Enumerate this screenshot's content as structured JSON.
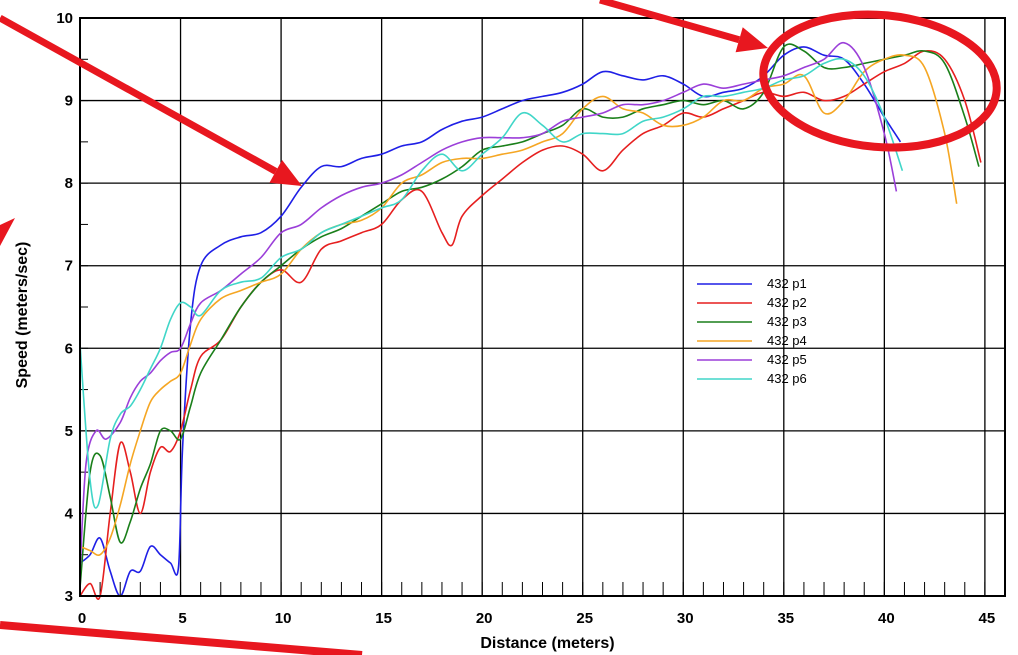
{
  "chart_data": {
    "type": "line",
    "title": "",
    "xlabel": "Distance (meters)",
    "ylabel": "Speed (meters/sec)",
    "xlim": [
      0,
      46
    ],
    "ylim": [
      3,
      10
    ],
    "x_ticks": [
      0,
      5,
      10,
      15,
      20,
      25,
      30,
      35,
      40,
      45
    ],
    "y_ticks": [
      3,
      4,
      5,
      6,
      7,
      8,
      9,
      10
    ],
    "grid": true,
    "legend_position": "center-right",
    "series": [
      {
        "name": "432 p1",
        "color": "#1f1fe6",
        "points": [
          [
            0,
            3.4
          ],
          [
            0.5,
            3.5
          ],
          [
            1,
            3.7
          ],
          [
            1.5,
            3.3
          ],
          [
            2,
            3.0
          ],
          [
            2.5,
            3.3
          ],
          [
            3,
            3.3
          ],
          [
            3.5,
            3.6
          ],
          [
            4,
            3.5
          ],
          [
            4.5,
            3.4
          ],
          [
            4.9,
            3.35
          ],
          [
            5.1,
            4.8
          ],
          [
            5.5,
            6.3
          ],
          [
            6,
            7.0
          ],
          [
            7,
            7.25
          ],
          [
            8,
            7.35
          ],
          [
            9,
            7.4
          ],
          [
            10,
            7.6
          ],
          [
            11,
            7.95
          ],
          [
            12,
            8.2
          ],
          [
            13,
            8.2
          ],
          [
            14,
            8.3
          ],
          [
            15,
            8.35
          ],
          [
            16,
            8.45
          ],
          [
            17,
            8.5
          ],
          [
            18,
            8.65
          ],
          [
            19,
            8.75
          ],
          [
            20,
            8.8
          ],
          [
            21,
            8.9
          ],
          [
            22,
            9.0
          ],
          [
            23,
            9.05
          ],
          [
            24,
            9.1
          ],
          [
            25,
            9.2
          ],
          [
            26,
            9.35
          ],
          [
            27,
            9.3
          ],
          [
            28,
            9.25
          ],
          [
            29,
            9.3
          ],
          [
            30,
            9.2
          ],
          [
            31,
            9.05
          ],
          [
            32,
            9.1
          ],
          [
            33,
            9.15
          ],
          [
            34,
            9.3
          ],
          [
            35,
            9.55
          ],
          [
            36,
            9.65
          ],
          [
            37,
            9.55
          ],
          [
            38,
            9.5
          ],
          [
            39,
            9.2
          ],
          [
            40,
            8.8
          ],
          [
            40.8,
            8.5
          ]
        ]
      },
      {
        "name": "432 p2",
        "color": "#e61f1f",
        "points": [
          [
            0,
            3.0
          ],
          [
            0.5,
            3.15
          ],
          [
            1,
            3.0
          ],
          [
            1.5,
            4.0
          ],
          [
            2,
            4.85
          ],
          [
            2.5,
            4.5
          ],
          [
            3,
            4.0
          ],
          [
            3.5,
            4.5
          ],
          [
            4,
            4.8
          ],
          [
            4.5,
            4.75
          ],
          [
            5,
            5.0
          ],
          [
            5.5,
            5.5
          ],
          [
            6,
            5.9
          ],
          [
            7,
            6.1
          ],
          [
            8,
            6.5
          ],
          [
            9,
            6.8
          ],
          [
            10,
            6.95
          ],
          [
            11,
            6.8
          ],
          [
            12,
            7.2
          ],
          [
            13,
            7.3
          ],
          [
            14,
            7.4
          ],
          [
            15,
            7.5
          ],
          [
            16,
            7.8
          ],
          [
            17,
            7.9
          ],
          [
            18,
            7.4
          ],
          [
            18.5,
            7.25
          ],
          [
            19,
            7.6
          ],
          [
            20,
            7.85
          ],
          [
            21,
            8.05
          ],
          [
            22,
            8.25
          ],
          [
            23,
            8.4
          ],
          [
            24,
            8.45
          ],
          [
            25,
            8.35
          ],
          [
            26,
            8.15
          ],
          [
            27,
            8.4
          ],
          [
            28,
            8.6
          ],
          [
            29,
            8.7
          ],
          [
            30,
            8.85
          ],
          [
            31,
            8.8
          ],
          [
            32,
            8.9
          ],
          [
            33,
            9.0
          ],
          [
            34,
            9.1
          ],
          [
            35,
            9.05
          ],
          [
            36,
            9.1
          ],
          [
            37,
            9.0
          ],
          [
            38,
            9.05
          ],
          [
            39,
            9.2
          ],
          [
            40,
            9.35
          ],
          [
            41,
            9.45
          ],
          [
            42,
            9.6
          ],
          [
            43,
            9.5
          ],
          [
            44,
            9.0
          ],
          [
            44.8,
            8.25
          ]
        ]
      },
      {
        "name": "432 p3",
        "color": "#1a7f1a",
        "points": [
          [
            0,
            3.1
          ],
          [
            0.5,
            4.5
          ],
          [
            1,
            4.7
          ],
          [
            1.5,
            4.2
          ],
          [
            2,
            3.65
          ],
          [
            2.5,
            3.9
          ],
          [
            3,
            4.3
          ],
          [
            3.5,
            4.6
          ],
          [
            4,
            5.0
          ],
          [
            4.5,
            5.0
          ],
          [
            5,
            4.9
          ],
          [
            5.5,
            5.3
          ],
          [
            6,
            5.7
          ],
          [
            7,
            6.1
          ],
          [
            8,
            6.5
          ],
          [
            9,
            6.8
          ],
          [
            10,
            7.0
          ],
          [
            11,
            7.2
          ],
          [
            12,
            7.35
          ],
          [
            13,
            7.45
          ],
          [
            14,
            7.6
          ],
          [
            15,
            7.75
          ],
          [
            16,
            7.9
          ],
          [
            17,
            7.95
          ],
          [
            18,
            8.05
          ],
          [
            19,
            8.2
          ],
          [
            20,
            8.4
          ],
          [
            21,
            8.45
          ],
          [
            22,
            8.5
          ],
          [
            23,
            8.6
          ],
          [
            24,
            8.7
          ],
          [
            25,
            8.9
          ],
          [
            26,
            8.8
          ],
          [
            27,
            8.8
          ],
          [
            28,
            8.9
          ],
          [
            29,
            8.95
          ],
          [
            30,
            9.0
          ],
          [
            31,
            8.95
          ],
          [
            32,
            9.0
          ],
          [
            33,
            8.9
          ],
          [
            34,
            9.1
          ],
          [
            35,
            9.65
          ],
          [
            36,
            9.6
          ],
          [
            37,
            9.4
          ],
          [
            38,
            9.4
          ],
          [
            39,
            9.45
          ],
          [
            40,
            9.5
          ],
          [
            41,
            9.55
          ],
          [
            42,
            9.6
          ],
          [
            43,
            9.45
          ],
          [
            44,
            8.8
          ],
          [
            44.7,
            8.2
          ]
        ]
      },
      {
        "name": "432 p4",
        "color": "#f5a623",
        "points": [
          [
            0,
            3.6
          ],
          [
            0.5,
            3.55
          ],
          [
            1,
            3.5
          ],
          [
            1.5,
            3.7
          ],
          [
            2,
            4.1
          ],
          [
            2.5,
            4.6
          ],
          [
            3,
            5.0
          ],
          [
            3.5,
            5.35
          ],
          [
            4,
            5.5
          ],
          [
            4.5,
            5.6
          ],
          [
            5,
            5.7
          ],
          [
            5.5,
            6.05
          ],
          [
            6,
            6.35
          ],
          [
            7,
            6.6
          ],
          [
            8,
            6.7
          ],
          [
            9,
            6.8
          ],
          [
            10,
            6.9
          ],
          [
            11,
            7.2
          ],
          [
            12,
            7.4
          ],
          [
            13,
            7.5
          ],
          [
            14,
            7.55
          ],
          [
            15,
            7.7
          ],
          [
            16,
            8.0
          ],
          [
            17,
            8.1
          ],
          [
            18,
            8.25
          ],
          [
            19,
            8.3
          ],
          [
            20,
            8.3
          ],
          [
            21,
            8.35
          ],
          [
            22,
            8.4
          ],
          [
            23,
            8.5
          ],
          [
            24,
            8.6
          ],
          [
            25,
            8.9
          ],
          [
            26,
            9.05
          ],
          [
            27,
            8.9
          ],
          [
            28,
            8.85
          ],
          [
            29,
            8.7
          ],
          [
            30,
            8.7
          ],
          [
            31,
            8.8
          ],
          [
            32,
            9.0
          ],
          [
            33,
            9.0
          ],
          [
            34,
            9.15
          ],
          [
            35,
            9.2
          ],
          [
            36,
            9.3
          ],
          [
            37,
            8.85
          ],
          [
            38,
            9.0
          ],
          [
            39,
            9.35
          ],
          [
            40,
            9.5
          ],
          [
            41,
            9.55
          ],
          [
            42,
            9.4
          ],
          [
            43,
            8.6
          ],
          [
            43.6,
            7.75
          ]
        ]
      },
      {
        "name": "432 p5",
        "color": "#9b3fd9",
        "points": [
          [
            0,
            3.3
          ],
          [
            0.3,
            4.6
          ],
          [
            0.8,
            5.0
          ],
          [
            1.3,
            4.9
          ],
          [
            2,
            5.1
          ],
          [
            2.5,
            5.4
          ],
          [
            3,
            5.6
          ],
          [
            3.5,
            5.7
          ],
          [
            4,
            5.85
          ],
          [
            4.5,
            5.95
          ],
          [
            5,
            6.0
          ],
          [
            5.5,
            6.3
          ],
          [
            6,
            6.55
          ],
          [
            7,
            6.7
          ],
          [
            8,
            6.9
          ],
          [
            9,
            7.1
          ],
          [
            10,
            7.4
          ],
          [
            11,
            7.5
          ],
          [
            12,
            7.7
          ],
          [
            13,
            7.85
          ],
          [
            14,
            7.95
          ],
          [
            15,
            8.0
          ],
          [
            16,
            8.1
          ],
          [
            17,
            8.25
          ],
          [
            18,
            8.4
          ],
          [
            19,
            8.5
          ],
          [
            20,
            8.55
          ],
          [
            21,
            8.55
          ],
          [
            22,
            8.55
          ],
          [
            23,
            8.6
          ],
          [
            24,
            8.75
          ],
          [
            25,
            8.8
          ],
          [
            26,
            8.85
          ],
          [
            27,
            8.95
          ],
          [
            28,
            8.95
          ],
          [
            29,
            9.0
          ],
          [
            30,
            9.1
          ],
          [
            31,
            9.2
          ],
          [
            32,
            9.15
          ],
          [
            33,
            9.2
          ],
          [
            34,
            9.25
          ],
          [
            35,
            9.3
          ],
          [
            36,
            9.4
          ],
          [
            37,
            9.5
          ],
          [
            38,
            9.7
          ],
          [
            39,
            9.4
          ],
          [
            40,
            8.6
          ],
          [
            40.6,
            7.9
          ]
        ]
      },
      {
        "name": "432 p6",
        "color": "#40d6c8",
        "points": [
          [
            0,
            6.05
          ],
          [
            0.5,
            4.4
          ],
          [
            0.9,
            4.1
          ],
          [
            1.5,
            4.9
          ],
          [
            2,
            5.2
          ],
          [
            2.5,
            5.3
          ],
          [
            3,
            5.5
          ],
          [
            3.5,
            5.75
          ],
          [
            4,
            6.0
          ],
          [
            4.5,
            6.35
          ],
          [
            5,
            6.55
          ],
          [
            5.5,
            6.5
          ],
          [
            6,
            6.4
          ],
          [
            7,
            6.7
          ],
          [
            8,
            6.8
          ],
          [
            9,
            6.85
          ],
          [
            10,
            7.1
          ],
          [
            11,
            7.2
          ],
          [
            12,
            7.4
          ],
          [
            13,
            7.5
          ],
          [
            14,
            7.6
          ],
          [
            15,
            7.7
          ],
          [
            16,
            7.8
          ],
          [
            17,
            8.15
          ],
          [
            18,
            8.35
          ],
          [
            19,
            8.15
          ],
          [
            20,
            8.35
          ],
          [
            21,
            8.55
          ],
          [
            22,
            8.85
          ],
          [
            23,
            8.7
          ],
          [
            24,
            8.5
          ],
          [
            25,
            8.6
          ],
          [
            26,
            8.6
          ],
          [
            27,
            8.6
          ],
          [
            28,
            8.75
          ],
          [
            29,
            8.8
          ],
          [
            30,
            8.9
          ],
          [
            31,
            9.05
          ],
          [
            32,
            9.05
          ],
          [
            33,
            9.1
          ],
          [
            34,
            9.15
          ],
          [
            35,
            9.25
          ],
          [
            36,
            9.3
          ],
          [
            37,
            9.45
          ],
          [
            38,
            9.5
          ],
          [
            39,
            9.3
          ],
          [
            40,
            8.8
          ],
          [
            40.9,
            8.15
          ]
        ]
      }
    ]
  },
  "annotations": {
    "arrow_color": "#e8171f",
    "circle_color": "#e8171f"
  }
}
